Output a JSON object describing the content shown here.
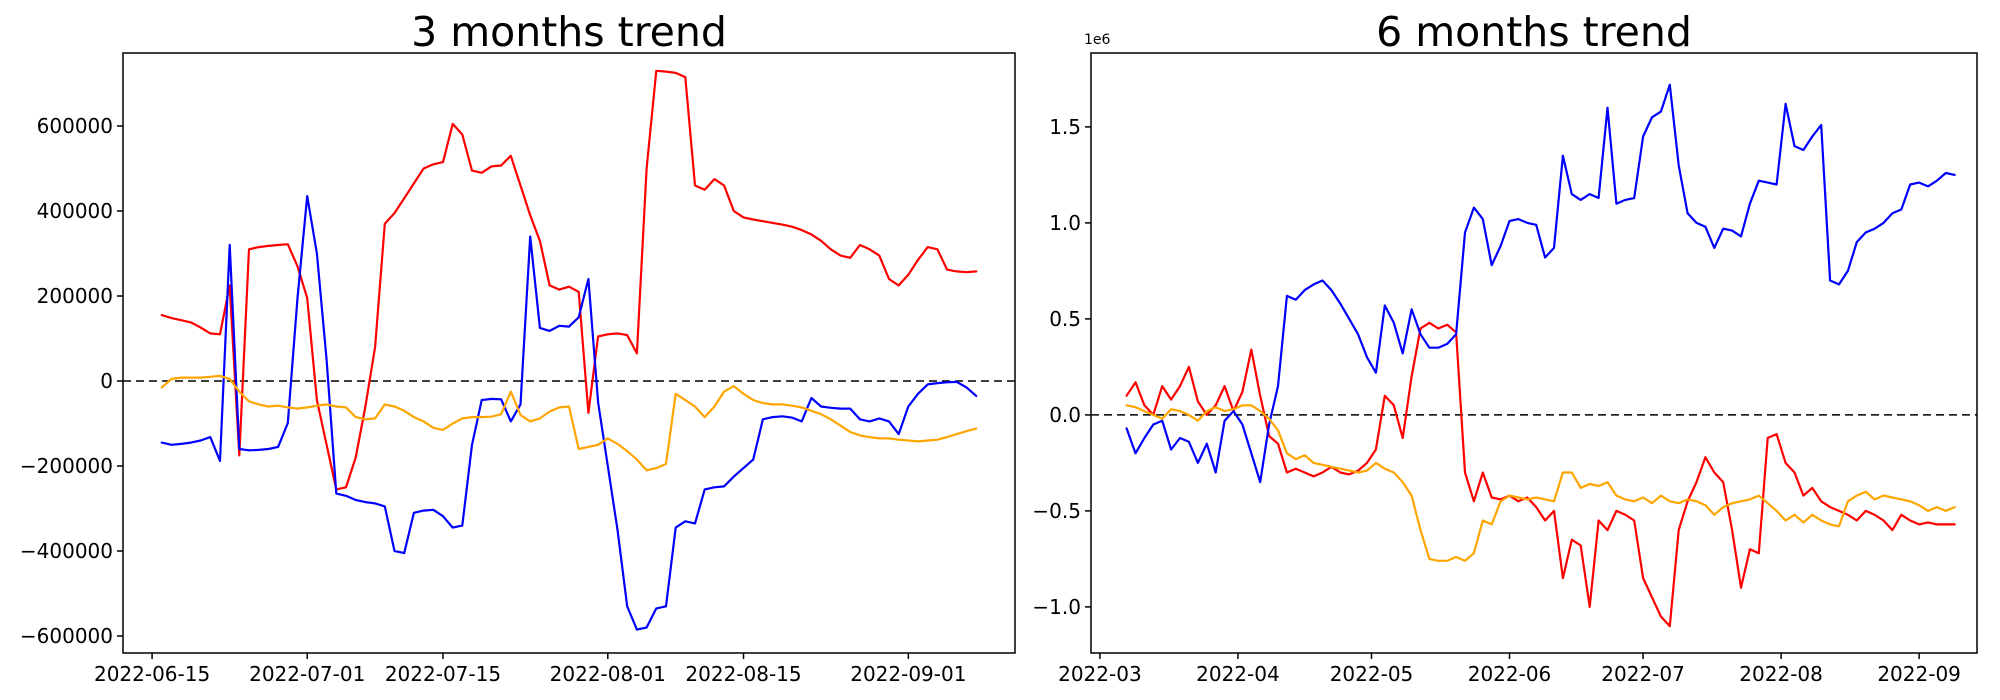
{
  "figure": {
    "background": "#ffffff",
    "axis_color": "#000000",
    "zero_line_color": "#000000"
  },
  "chart_data": [
    {
      "type": "line",
      "title": "3 months trend",
      "xlabel": "",
      "ylabel": "",
      "grid": false,
      "legend": "none",
      "zero_line_dashed": true,
      "axis": {
        "xmin": "2022-06-12",
        "xmax": "2022-09-12",
        "ymin": -640000,
        "ymax": 771800
      },
      "x_ticks": [
        "2022-06-15",
        "2022-07-01",
        "2022-07-15",
        "2022-08-01",
        "2022-08-15",
        "2022-09-01"
      ],
      "y_ticks": [
        {
          "label": "600000",
          "v": 600000
        },
        {
          "label": "400000",
          "v": 400000
        },
        {
          "label": "200000",
          "v": 200000
        },
        {
          "label": "0",
          "v": 0
        },
        {
          "label": "−200000",
          "v": -200000
        },
        {
          "label": "−400000",
          "v": -400000
        },
        {
          "label": "−600000",
          "v": -600000
        }
      ],
      "offset_label": "",
      "x_start": "2022-06-16",
      "x_end": "2022-09-08",
      "series": [
        {
          "name": "series-red",
          "color": "#ff0000",
          "values": [
            155000,
            148000,
            143000,
            138000,
            126000,
            112000,
            110000,
            225000,
            -175000,
            310000,
            315000,
            318000,
            320000,
            322000,
            270000,
            195000,
            -45000,
            -150000,
            -255000,
            -250000,
            -180000,
            -60000,
            80000,
            370000,
            395000,
            430000,
            465000,
            500000,
            510000,
            515000,
            605000,
            580000,
            495000,
            490000,
            505000,
            507000,
            530000,
            460000,
            390000,
            330000,
            225000,
            215000,
            222000,
            210000,
            -75000,
            105000,
            110000,
            112000,
            108000,
            65000,
            500000,
            730000,
            728000,
            725000,
            715000,
            460000,
            450000,
            475000,
            460000,
            400000,
            385000,
            380000,
            376000,
            372000,
            368000,
            363000,
            355000,
            345000,
            330000,
            310000,
            295000,
            290000,
            320000,
            310000,
            295000,
            240000,
            225000,
            250000,
            285000,
            315000,
            310000,
            262000,
            258000,
            256000,
            258000
          ]
        },
        {
          "name": "series-blue",
          "color": "#0000ff",
          "values": [
            -145000,
            -150000,
            -148000,
            -145000,
            -140000,
            -132000,
            -188000,
            320000,
            -160000,
            -163000,
            -162000,
            -160000,
            -155000,
            -99000,
            195000,
            435000,
            300000,
            50000,
            -265000,
            -270000,
            -280000,
            -285000,
            -288000,
            -295000,
            -400000,
            -405000,
            -310000,
            -305000,
            -303000,
            -318000,
            -345000,
            -340000,
            -150000,
            -45000,
            -42000,
            -43000,
            -95000,
            -55000,
            340000,
            125000,
            118000,
            130000,
            128000,
            150000,
            240000,
            -50000,
            -200000,
            -350000,
            -530000,
            -585000,
            -580000,
            -535000,
            -530000,
            -345000,
            -330000,
            -335000,
            -255000,
            -250000,
            -248000,
            -225000,
            -205000,
            -185000,
            -90000,
            -85000,
            -83000,
            -86000,
            -95000,
            -40000,
            -60000,
            -63000,
            -65000,
            -65000,
            -90000,
            -95000,
            -88000,
            -95000,
            -125000,
            -60000,
            -30000,
            -8000,
            -5000,
            -3000,
            -2000,
            -15000,
            -35000
          ]
        },
        {
          "name": "series-orange",
          "color": "#ffa500",
          "values": [
            -15000,
            5000,
            8000,
            8000,
            8000,
            10000,
            12000,
            5000,
            -25000,
            -48000,
            -55000,
            -60000,
            -58000,
            -62000,
            -65000,
            -62000,
            -58000,
            -55000,
            -60000,
            -62000,
            -85000,
            -90000,
            -88000,
            -55000,
            -60000,
            -70000,
            -85000,
            -95000,
            -110000,
            -115000,
            -100000,
            -88000,
            -85000,
            -85000,
            -84000,
            -78000,
            -25000,
            -80000,
            -95000,
            -88000,
            -72000,
            -62000,
            -60000,
            -160000,
            -155000,
            -150000,
            -135000,
            -148000,
            -165000,
            -185000,
            -210000,
            -205000,
            -195000,
            -30000,
            -45000,
            -60000,
            -85000,
            -60000,
            -25000,
            -12000,
            -30000,
            -45000,
            -52000,
            -55000,
            -55000,
            -58000,
            -62000,
            -70000,
            -78000,
            -90000,
            -105000,
            -120000,
            -128000,
            -132000,
            -135000,
            -135000,
            -138000,
            -140000,
            -142000,
            -140000,
            -138000,
            -132000,
            -125000,
            -118000,
            -112000
          ]
        }
      ]
    },
    {
      "type": "line",
      "title": "6 months trend",
      "xlabel": "",
      "ylabel": "",
      "grid": false,
      "legend": "none",
      "zero_line_dashed": true,
      "axis": {
        "xmin": "2022-02-27",
        "xmax": "2022-09-14",
        "ymin": -1240000,
        "ymax": 1885000
      },
      "x_ticks": [
        "2022-03",
        "2022-04",
        "2022-05",
        "2022-06",
        "2022-07",
        "2022-08",
        "2022-09"
      ],
      "y_ticks": [
        {
          "label": "1.5",
          "v": 1500000
        },
        {
          "label": "1.0",
          "v": 1000000
        },
        {
          "label": "0.5",
          "v": 500000
        },
        {
          "label": "0.0",
          "v": 0
        },
        {
          "label": "−0.5",
          "v": -500000
        },
        {
          "label": "−1.0",
          "v": -1000000
        }
      ],
      "offset_label": "1e6",
      "x_start": "2022-03-07",
      "x_end": "2022-09-09",
      "series": [
        {
          "name": "series-red",
          "color": "#ff0000",
          "values": [
            100000,
            170000,
            50000,
            0,
            150000,
            80000,
            150000,
            250000,
            70000,
            0,
            50000,
            150000,
            20000,
            120000,
            340000,
            100000,
            -110000,
            -150000,
            -300000,
            -280000,
            -300000,
            -320000,
            -300000,
            -270000,
            -300000,
            -310000,
            -290000,
            -250000,
            -180000,
            100000,
            50000,
            -120000,
            200000,
            450000,
            480000,
            450000,
            470000,
            430000,
            -300000,
            -450000,
            -300000,
            -430000,
            -440000,
            -420000,
            -450000,
            -430000,
            -480000,
            -550000,
            -500000,
            -850000,
            -650000,
            -680000,
            -1000000,
            -550000,
            -600000,
            -500000,
            -520000,
            -550000,
            -850000,
            -950000,
            -1050000,
            -1100000,
            -600000,
            -450000,
            -350000,
            -220000,
            -300000,
            -350000,
            -600000,
            -900000,
            -700000,
            -720000,
            -120000,
            -100000,
            -250000,
            -300000,
            -420000,
            -380000,
            -450000,
            -480000,
            -500000,
            -520000,
            -550000,
            -500000,
            -520000,
            -550000,
            -600000,
            -520000,
            -550000,
            -570000,
            -560000,
            -570000,
            -570000,
            -570000
          ]
        },
        {
          "name": "series-blue",
          "color": "#0000ff",
          "values": [
            -70000,
            -200000,
            -120000,
            -50000,
            -30000,
            -180000,
            -120000,
            -140000,
            -250000,
            -150000,
            -300000,
            -30000,
            20000,
            -50000,
            -200000,
            -350000,
            -50000,
            150000,
            620000,
            600000,
            650000,
            680000,
            700000,
            650000,
            580000,
            500000,
            420000,
            300000,
            220000,
            570000,
            480000,
            320000,
            550000,
            420000,
            350000,
            350000,
            370000,
            420000,
            950000,
            1080000,
            1020000,
            780000,
            880000,
            1010000,
            1020000,
            1000000,
            990000,
            820000,
            870000,
            1350000,
            1150000,
            1120000,
            1150000,
            1130000,
            1600000,
            1100000,
            1120000,
            1130000,
            1450000,
            1550000,
            1580000,
            1720000,
            1300000,
            1050000,
            1000000,
            980000,
            870000,
            970000,
            960000,
            930000,
            1100000,
            1220000,
            1210000,
            1200000,
            1620000,
            1400000,
            1380000,
            1450000,
            1510000,
            700000,
            680000,
            750000,
            900000,
            950000,
            970000,
            1000000,
            1050000,
            1070000,
            1200000,
            1210000,
            1190000,
            1220000,
            1260000,
            1250000
          ]
        },
        {
          "name": "series-orange",
          "color": "#ffa500",
          "values": [
            50000,
            40000,
            20000,
            0,
            -20000,
            30000,
            20000,
            0,
            -30000,
            20000,
            40000,
            20000,
            30000,
            50000,
            50000,
            20000,
            -20000,
            -80000,
            -200000,
            -230000,
            -210000,
            -250000,
            -260000,
            -270000,
            -280000,
            -290000,
            -300000,
            -290000,
            -250000,
            -280000,
            -300000,
            -350000,
            -420000,
            -600000,
            -750000,
            -760000,
            -760000,
            -740000,
            -760000,
            -720000,
            -550000,
            -570000,
            -450000,
            -420000,
            -430000,
            -440000,
            -430000,
            -440000,
            -450000,
            -300000,
            -300000,
            -380000,
            -360000,
            -370000,
            -350000,
            -420000,
            -440000,
            -450000,
            -430000,
            -460000,
            -420000,
            -450000,
            -460000,
            -440000,
            -450000,
            -470000,
            -520000,
            -480000,
            -460000,
            -450000,
            -440000,
            -420000,
            -460000,
            -500000,
            -550000,
            -520000,
            -560000,
            -520000,
            -550000,
            -570000,
            -580000,
            -450000,
            -420000,
            -400000,
            -440000,
            -420000,
            -430000,
            -440000,
            -450000,
            -470000,
            -500000,
            -480000,
            -500000,
            -480000
          ]
        }
      ]
    }
  ]
}
